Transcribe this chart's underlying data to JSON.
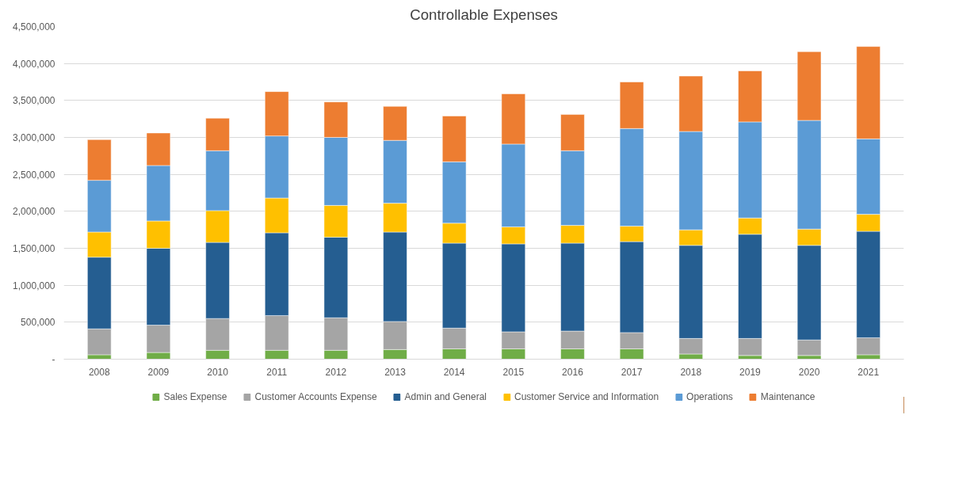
{
  "chart_data": {
    "type": "bar",
    "stacked": true,
    "title": "Controllable Expenses",
    "categories": [
      "2008",
      "2009",
      "2010",
      "2011",
      "2012",
      "2013",
      "2014",
      "2015",
      "2016",
      "2017",
      "2018",
      "2019",
      "2020",
      "2021"
    ],
    "series": [
      {
        "name": "Sales Expense",
        "color": "#70ad47",
        "values": [
          60000,
          90000,
          120000,
          120000,
          120000,
          130000,
          140000,
          140000,
          140000,
          140000,
          70000,
          50000,
          50000,
          60000
        ]
      },
      {
        "name": "Customer Accounts Expense",
        "color": "#a5a5a5",
        "values": [
          350000,
          370000,
          430000,
          470000,
          440000,
          380000,
          280000,
          230000,
          240000,
          220000,
          210000,
          230000,
          210000,
          230000
        ]
      },
      {
        "name": "Admin and General",
        "color": "#255e91",
        "values": [
          970000,
          1040000,
          1030000,
          1120000,
          1090000,
          1210000,
          1150000,
          1190000,
          1190000,
          1230000,
          1260000,
          1410000,
          1280000,
          1440000
        ]
      },
      {
        "name": "Customer Service and Information",
        "color": "#ffc000",
        "values": [
          340000,
          370000,
          430000,
          470000,
          430000,
          390000,
          270000,
          230000,
          240000,
          210000,
          210000,
          220000,
          220000,
          230000
        ]
      },
      {
        "name": "Operations",
        "color": "#5b9bd5",
        "values": [
          700000,
          750000,
          810000,
          840000,
          920000,
          850000,
          830000,
          1120000,
          1010000,
          1320000,
          1330000,
          1300000,
          1470000,
          1020000
        ]
      },
      {
        "name": "Maintenance",
        "color": "#ed7d31",
        "values": [
          550000,
          440000,
          440000,
          600000,
          480000,
          460000,
          620000,
          680000,
          490000,
          630000,
          750000,
          690000,
          930000,
          1250000
        ]
      }
    ],
    "ylim": [
      0,
      4500000
    ],
    "yticks": [
      {
        "value": 0,
        "label": "-"
      },
      {
        "value": 500000,
        "label": "500,000"
      },
      {
        "value": 1000000,
        "label": "1,000,000"
      },
      {
        "value": 1500000,
        "label": "1,500,000"
      },
      {
        "value": 2000000,
        "label": "2,000,000"
      },
      {
        "value": 2500000,
        "label": "2,500,000"
      },
      {
        "value": 3000000,
        "label": "3,000,000"
      },
      {
        "value": 3500000,
        "label": "3,500,000"
      },
      {
        "value": 4000000,
        "label": "4,000,000"
      },
      {
        "value": 4500000,
        "label": "4,500,000"
      }
    ],
    "grid": "y",
    "legend": "bottom"
  }
}
